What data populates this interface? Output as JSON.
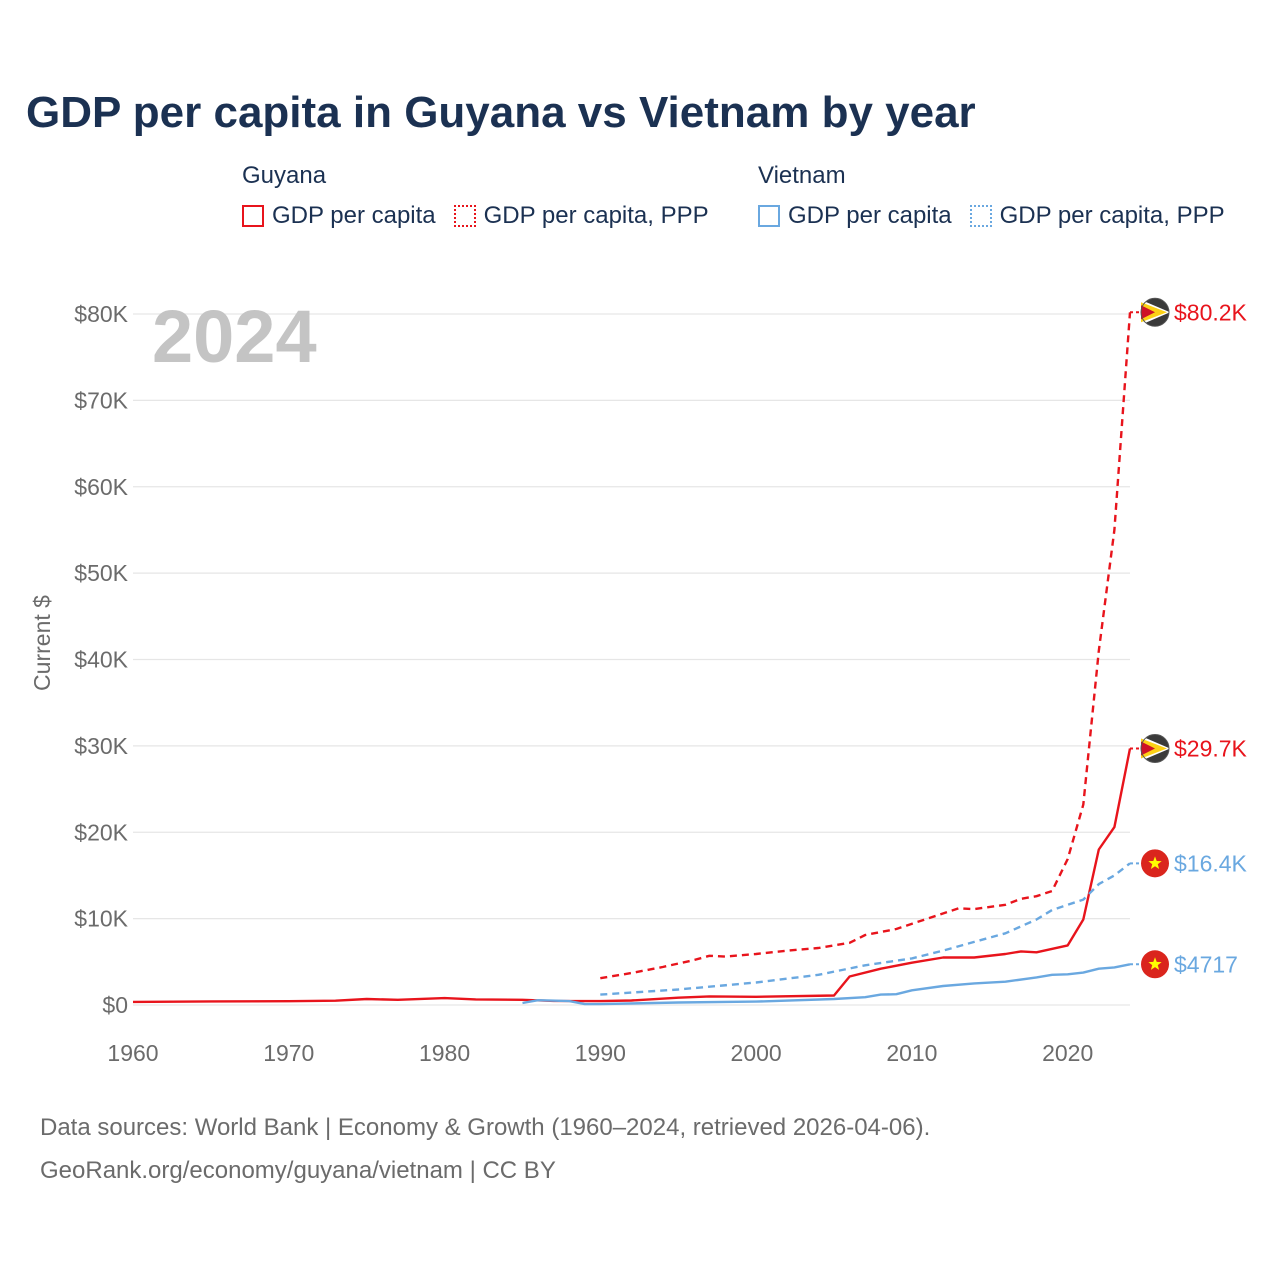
{
  "title": "GDP per capita in Guyana vs Vietnam by year",
  "legend": {
    "guyana": {
      "title": "Guyana",
      "items": [
        "GDP per capita",
        "GDP per capita, PPP"
      ]
    },
    "vietnam": {
      "title": "Vietnam",
      "items": [
        "GDP per capita",
        "GDP per capita, PPP"
      ]
    }
  },
  "colors": {
    "guyana": "#e8141c",
    "vietnam": "#6aa8e0",
    "title": "#1b3152",
    "year_watermark": "#c4c4c4"
  },
  "source_lines": [
    "Data sources: World Bank | Economy & Growth (1960–2024, retrieved 2026-04-06).",
    "GeoRank.org/economy/guyana/vietnam | CC BY"
  ],
  "chart_data": {
    "type": "line",
    "title": "GDP per capita in Guyana vs Vietnam by year",
    "xlabel": "",
    "ylabel": "Current $",
    "year_label": "2024",
    "xlim": [
      1960,
      2024
    ],
    "ylim": [
      0,
      80000
    ],
    "x_ticks": [
      1960,
      1970,
      1980,
      1990,
      2000,
      2010,
      2020
    ],
    "x_tick_labels": [
      "1960",
      "1970",
      "1980",
      "1990",
      "2000",
      "2010",
      "2020"
    ],
    "y_ticks": [
      0,
      10000,
      20000,
      30000,
      40000,
      50000,
      60000,
      70000,
      80000
    ],
    "y_tick_labels": [
      "$0",
      "$10K",
      "$20K",
      "$30K",
      "$40K",
      "$50K",
      "$60K",
      "$70K",
      "$80K"
    ],
    "grid": true,
    "series": [
      {
        "name": "Guyana GDP per capita",
        "country": "Guyana",
        "style": "solid",
        "color": "#e8141c",
        "end_label": "$29.7K",
        "points": [
          [
            1960,
            360
          ],
          [
            1965,
            420
          ],
          [
            1970,
            440
          ],
          [
            1973,
            500
          ],
          [
            1975,
            700
          ],
          [
            1977,
            600
          ],
          [
            1980,
            800
          ],
          [
            1982,
            650
          ],
          [
            1985,
            600
          ],
          [
            1987,
            480
          ],
          [
            1990,
            450
          ],
          [
            1992,
            520
          ],
          [
            1995,
            850
          ],
          [
            1997,
            1000
          ],
          [
            2000,
            950
          ],
          [
            2005,
            1100
          ],
          [
            2006,
            3300
          ],
          [
            2008,
            4200
          ],
          [
            2010,
            4900
          ],
          [
            2012,
            5500
          ],
          [
            2014,
            5500
          ],
          [
            2016,
            5900
          ],
          [
            2017,
            6200
          ],
          [
            2018,
            6100
          ],
          [
            2020,
            6900
          ],
          [
            2021,
            9900
          ],
          [
            2022,
            18000
          ],
          [
            2023,
            20600
          ],
          [
            2024,
            29700
          ]
        ]
      },
      {
        "name": "Guyana GDP per capita, PPP",
        "country": "Guyana",
        "style": "dashed",
        "color": "#e8141c",
        "end_label": "$80.2K",
        "points": [
          [
            1990,
            3100
          ],
          [
            1992,
            3700
          ],
          [
            1994,
            4400
          ],
          [
            1996,
            5200
          ],
          [
            1997,
            5700
          ],
          [
            1998,
            5600
          ],
          [
            2000,
            5900
          ],
          [
            2002,
            6300
          ],
          [
            2004,
            6600
          ],
          [
            2006,
            7200
          ],
          [
            2007,
            8100
          ],
          [
            2009,
            8800
          ],
          [
            2011,
            10000
          ],
          [
            2013,
            11200
          ],
          [
            2014,
            11100
          ],
          [
            2016,
            11600
          ],
          [
            2017,
            12300
          ],
          [
            2018,
            12600
          ],
          [
            2019,
            13200
          ],
          [
            2020,
            16900
          ],
          [
            2021,
            23200
          ],
          [
            2022,
            41000
          ],
          [
            2023,
            55000
          ],
          [
            2024,
            80200
          ]
        ]
      },
      {
        "name": "Vietnam GDP per capita",
        "country": "Vietnam",
        "style": "solid",
        "color": "#6aa8e0",
        "end_label": "$4717",
        "points": [
          [
            1985,
            230
          ],
          [
            1986,
            550
          ],
          [
            1988,
            450
          ],
          [
            1989,
            100
          ],
          [
            1990,
            100
          ],
          [
            1995,
            290
          ],
          [
            2000,
            390
          ],
          [
            2005,
            700
          ],
          [
            2007,
            900
          ],
          [
            2008,
            1200
          ],
          [
            2009,
            1250
          ],
          [
            2010,
            1700
          ],
          [
            2012,
            2200
          ],
          [
            2014,
            2500
          ],
          [
            2016,
            2700
          ],
          [
            2018,
            3200
          ],
          [
            2019,
            3500
          ],
          [
            2020,
            3550
          ],
          [
            2021,
            3750
          ],
          [
            2022,
            4200
          ],
          [
            2023,
            4350
          ],
          [
            2024,
            4717
          ]
        ]
      },
      {
        "name": "Vietnam GDP per capita, PPP",
        "country": "Vietnam",
        "style": "dashed",
        "color": "#6aa8e0",
        "end_label": "$16.4K",
        "points": [
          [
            1990,
            1200
          ],
          [
            1995,
            1800
          ],
          [
            2000,
            2600
          ],
          [
            2004,
            3500
          ],
          [
            2007,
            4600
          ],
          [
            2010,
            5400
          ],
          [
            2012,
            6300
          ],
          [
            2014,
            7300
          ],
          [
            2016,
            8300
          ],
          [
            2018,
            9900
          ],
          [
            2019,
            11000
          ],
          [
            2021,
            12200
          ],
          [
            2022,
            14000
          ],
          [
            2023,
            15000
          ],
          [
            2024,
            16400
          ]
        ]
      }
    ]
  }
}
